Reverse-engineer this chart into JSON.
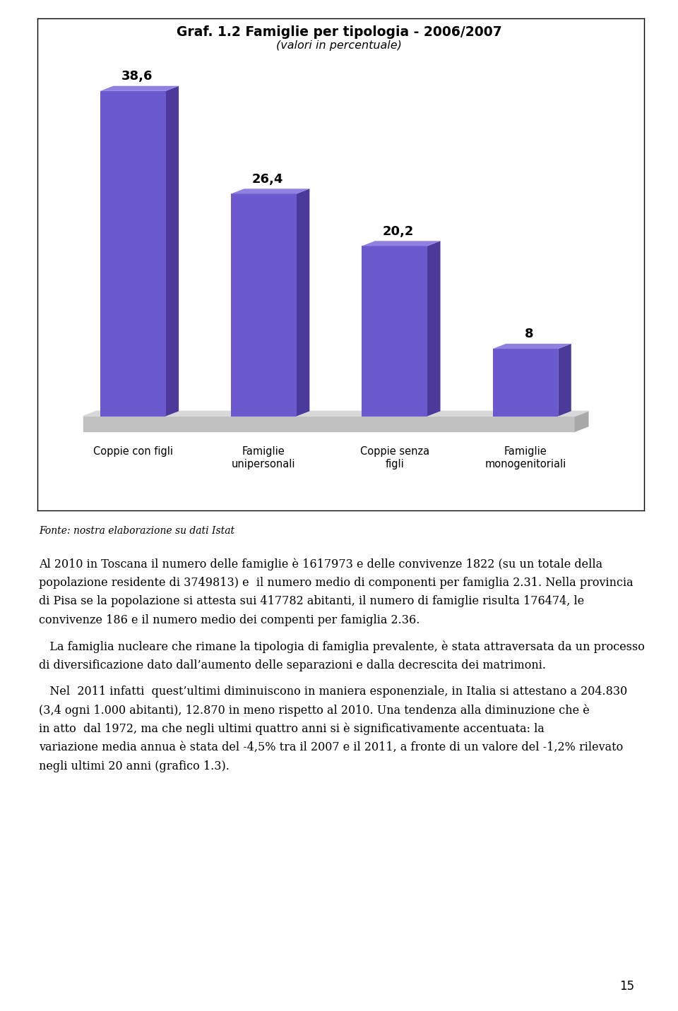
{
  "title_line1": "Graf. 1.2 Famiglie per tipologia - 2006/2007",
  "title_line2": "(valori in percentuale)",
  "categories": [
    "Coppie con figli",
    "Famiglie\nunipersonali",
    "Coppie senza\nfigli",
    "Famiglie\nmonogenitoriali"
  ],
  "values": [
    38.6,
    26.4,
    20.2,
    8
  ],
  "bar_color_face": "#6A5ACD",
  "bar_color_side": "#4B3A9A",
  "bar_color_top": "#9080E0",
  "chart_bg": "#E8E8F0",
  "floor_color": "#C0C0C0",
  "floor_top_color": "#D8D8D8",
  "floor_side_color": "#A8A8A8",
  "page_bg": "#FFFFFF",
  "fonte_text": "Fonte: nostra elaborazione su dati Istat",
  "paragraph1": "Al 2010 in Toscana il numero delle famiglie è 1617973 e delle convivenze 1822 (su un totale della popolazione residente di 3749813) e  il numero medio di componenti per famiglia 2.31. Nella provincia di Pisa se la popolazione si attesta sui 417782 abitanti, il numero di famiglie risulta 176474, le convivenze 186 e il numero medio dei compenti per famiglia 2.36.",
  "paragraph2": "La famiglia nucleare che rimane la tipologia di famiglia prevalente, è stata attraversata da un processo di diversificazione dato dall’aumento delle separazioni e dalla decrescita dei matrimoni.",
  "paragraph3": "Nel  2011 infatti  quest’ultimi diminuiscono in maniera esponenziale, in Italia si attestano a 204.830 (3,4 ogni 1.000 abitanti), 12.870 in meno rispetto al 2010. Una tendenza alla diminuzione che è in atto  dal 1972, ma che negli ultimi quattro anni si è significativamente accentuata: la variazione media annua è stata del -4,5% tra il 2007 e il 2011, a fronte di un valore del -1,2% rilevato negli ultimi 20 anni (grafico 1.3).",
  "page_number": "15",
  "ylim_max": 44
}
